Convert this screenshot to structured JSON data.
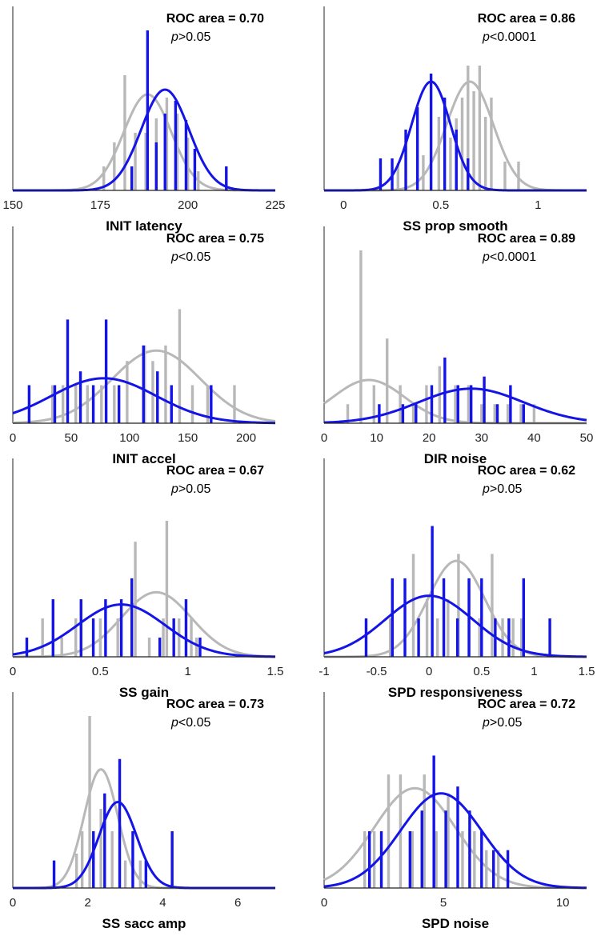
{
  "chart_data": [
    {
      "type": "histogram",
      "xlabel": "INIT latency",
      "roc_label": "ROC area = 0.70",
      "p_sym": "p",
      "p_rest": ">0.05",
      "xlim": [
        150,
        225
      ],
      "xticks": [
        150,
        175,
        200,
        225
      ],
      "tick_labels": [
        "150",
        "175",
        "200",
        "225"
      ],
      "ymax": 1.0,
      "series": [
        {
          "name": "gray",
          "color": "#b8b8b8",
          "bars": [
            [
              176,
              0.15
            ],
            [
              179,
              0.3
            ],
            [
              182,
              0.72
            ],
            [
              185,
              0.36
            ],
            [
              188,
              0.36
            ],
            [
              191,
              0.45
            ],
            [
              194,
              0.58
            ],
            [
              197,
              0.48
            ],
            [
              200,
              0.33
            ],
            [
              203,
              0.12
            ]
          ],
          "curve": {
            "mu": 188.5,
            "sigma": 6.8,
            "peak": 0.6
          }
        },
        {
          "name": "blue",
          "color": "#1414e6",
          "bars": [
            [
              184,
              0.15
            ],
            [
              188.5,
              1.0
            ],
            [
              191,
              0.3
            ],
            [
              193.5,
              0.48
            ],
            [
              196.5,
              0.56
            ],
            [
              199.5,
              0.44
            ],
            [
              202,
              0.26
            ],
            [
              211,
              0.15
            ]
          ],
          "curve": {
            "mu": 193.5,
            "sigma": 6.8,
            "peak": 0.63
          }
        }
      ]
    },
    {
      "type": "histogram",
      "xlabel": "SS prop smooth",
      "roc_label": "ROC area = 0.86",
      "p_sym": "p",
      "p_rest": "<0.0001",
      "xlim": [
        -0.1,
        1.25
      ],
      "xticks": [
        0,
        0.5,
        1
      ],
      "tick_labels": [
        "0",
        "0.5",
        "1"
      ],
      "ymax": 1.0,
      "series": [
        {
          "name": "gray",
          "color": "#b8b8b8",
          "bars": [
            [
              0.28,
              0.17
            ],
            [
              0.41,
              0.22
            ],
            [
              0.49,
              0.46
            ],
            [
              0.55,
              0.33
            ],
            [
              0.58,
              0.45
            ],
            [
              0.61,
              0.58
            ],
            [
              0.64,
              0.78
            ],
            [
              0.67,
              0.62
            ],
            [
              0.7,
              0.78
            ],
            [
              0.73,
              0.46
            ],
            [
              0.76,
              0.58
            ],
            [
              0.83,
              0.18
            ],
            [
              0.9,
              0.18
            ]
          ],
          "curve": {
            "mu": 0.65,
            "sigma": 0.12,
            "peak": 0.68
          }
        },
        {
          "name": "blue",
          "color": "#1414e6",
          "bars": [
            [
              0.19,
              0.2
            ],
            [
              0.25,
              0.2
            ],
            [
              0.32,
              0.38
            ],
            [
              0.38,
              0.52
            ],
            [
              0.45,
              0.73
            ],
            [
              0.52,
              0.58
            ],
            [
              0.58,
              0.38
            ],
            [
              0.64,
              0.2
            ]
          ],
          "curve": {
            "mu": 0.45,
            "sigma": 0.1,
            "peak": 0.68
          }
        }
      ]
    },
    {
      "type": "histogram",
      "xlabel": "INIT accel",
      "roc_label": "ROC area = 0.75",
      "p_sym": "p",
      "p_rest": "<0.05",
      "xlim": [
        0,
        225
      ],
      "xticks": [
        0,
        50,
        100,
        150,
        200
      ],
      "tick_labels": [
        "0",
        "50",
        "100",
        "150",
        "200"
      ],
      "ymax": 1.0,
      "series": [
        {
          "name": "gray",
          "color": "#b8b8b8",
          "bars": [
            [
              34,
              0.22
            ],
            [
              43,
              0.22
            ],
            [
              54,
              0.22
            ],
            [
              64,
              0.22
            ],
            [
              76,
              0.22
            ],
            [
              87,
              0.22
            ],
            [
              98,
              0.36
            ],
            [
              113,
              0.45
            ],
            [
              120,
              0.36
            ],
            [
              131,
              0.45
            ],
            [
              143,
              0.66
            ],
            [
              154,
              0.22
            ],
            [
              167,
              0.22
            ],
            [
              190,
              0.22
            ]
          ],
          "curve": {
            "mu": 123,
            "sigma": 38,
            "peak": 0.42
          }
        },
        {
          "name": "blue",
          "color": "#1414e6",
          "bars": [
            [
              14,
              0.22
            ],
            [
              36,
              0.22
            ],
            [
              47,
              0.6
            ],
            [
              58,
              0.3
            ],
            [
              69,
              0.22
            ],
            [
              80,
              0.6
            ],
            [
              91,
              0.22
            ],
            [
              112,
              0.45
            ],
            [
              124,
              0.3
            ],
            [
              136,
              0.22
            ],
            [
              170,
              0.22
            ]
          ],
          "curve": {
            "mu": 78,
            "sigma": 45,
            "peak": 0.26
          }
        }
      ]
    },
    {
      "type": "histogram",
      "xlabel": "DIR noise",
      "roc_label": "ROC area = 0.89",
      "p_sym": "p",
      "p_rest": "<0.0001",
      "xlim": [
        0,
        50
      ],
      "xticks": [
        0,
        10,
        20,
        30,
        40,
        50
      ],
      "tick_labels": [
        "0",
        "10",
        "20",
        "30",
        "40",
        "50"
      ],
      "ymax": 1.0,
      "series": [
        {
          "name": "gray",
          "color": "#b8b8b8",
          "bars": [
            [
              4.5,
              0.11
            ],
            [
              7,
              1.0
            ],
            [
              9.5,
              0.22
            ],
            [
              12,
              0.49
            ],
            [
              14.5,
              0.22
            ],
            [
              17,
              0.11
            ],
            [
              19.5,
              0.22
            ],
            [
              22,
              0.33
            ],
            [
              25,
              0.22
            ],
            [
              27.5,
              0.22
            ],
            [
              30,
              0.11
            ],
            [
              32.5,
              0.11
            ],
            [
              35,
              0.11
            ],
            [
              37.5,
              0.11
            ],
            [
              40,
              0.11
            ]
          ],
          "curve": {
            "mu": 8.5,
            "sigma": 6.8,
            "peak": 0.25
          }
        },
        {
          "name": "blue",
          "color": "#1414e6",
          "bars": [
            [
              10.5,
              0.11
            ],
            [
              15,
              0.11
            ],
            [
              17.5,
              0.11
            ],
            [
              20.5,
              0.22
            ],
            [
              23,
              0.38
            ],
            [
              25.5,
              0.22
            ],
            [
              28,
              0.22
            ],
            [
              30.5,
              0.27
            ],
            [
              33,
              0.11
            ],
            [
              35.5,
              0.22
            ],
            [
              38,
              0.11
            ]
          ],
          "curve": {
            "mu": 28,
            "sigma": 10,
            "peak": 0.2
          }
        }
      ]
    },
    {
      "type": "histogram",
      "xlabel": "SS gain",
      "roc_label": "ROC area = 0.67",
      "p_sym": "p",
      "p_rest": ">0.05",
      "xlim": [
        0,
        1.5
      ],
      "xticks": [
        0,
        0.5,
        1,
        1.5
      ],
      "tick_labels": [
        "0",
        "0.5",
        "1",
        "1.5"
      ],
      "ymax": 1.0,
      "series": [
        {
          "name": "gray",
          "color": "#b8b8b8",
          "bars": [
            [
              0.17,
              0.22
            ],
            [
              0.28,
              0.11
            ],
            [
              0.36,
              0.22
            ],
            [
              0.5,
              0.22
            ],
            [
              0.6,
              0.22
            ],
            [
              0.7,
              0.66
            ],
            [
              0.78,
              0.11
            ],
            [
              0.86,
              0.22
            ],
            [
              0.88,
              0.78
            ],
            [
              0.95,
              0.22
            ],
            [
              1.02,
              0.22
            ],
            [
              1.05,
              0.11
            ]
          ],
          "curve": {
            "mu": 0.82,
            "sigma": 0.2,
            "peak": 0.37
          }
        },
        {
          "name": "blue",
          "color": "#1414e6",
          "bars": [
            [
              0.08,
              0.11
            ],
            [
              0.23,
              0.33
            ],
            [
              0.39,
              0.33
            ],
            [
              0.46,
              0.22
            ],
            [
              0.53,
              0.33
            ],
            [
              0.62,
              0.33
            ],
            [
              0.68,
              0.45
            ],
            [
              0.84,
              0.11
            ],
            [
              0.92,
              0.22
            ],
            [
              0.99,
              0.33
            ],
            [
              1.07,
              0.11
            ]
          ],
          "curve": {
            "mu": 0.62,
            "sigma": 0.25,
            "peak": 0.3
          }
        }
      ]
    },
    {
      "type": "histogram",
      "xlabel": "SPD responsiveness",
      "roc_label": "ROC area = 0.62",
      "p_sym": "p",
      "p_rest": ">0.05",
      "xlim": [
        -1,
        1.5
      ],
      "xticks": [
        -1,
        -0.5,
        0,
        0.5,
        1,
        1.5
      ],
      "tick_labels": [
        "-1",
        "-0.5",
        "0",
        "0.5",
        "1",
        "1.5"
      ],
      "ymax": 1.0,
      "series": [
        {
          "name": "gray",
          "color": "#b8b8b8",
          "bars": [
            [
              -0.37,
              0.22
            ],
            [
              -0.15,
              0.59
            ],
            [
              -0.02,
              0.33
            ],
            [
              0.08,
              0.22
            ],
            [
              0.18,
              0.33
            ],
            [
              0.28,
              0.59
            ],
            [
              0.38,
              0.45
            ],
            [
              0.48,
              0.22
            ],
            [
              0.6,
              0.59
            ],
            [
              0.7,
              0.22
            ],
            [
              0.8,
              0.22
            ],
            [
              0.88,
              0.22
            ]
          ],
          "curve": {
            "mu": 0.26,
            "sigma": 0.27,
            "peak": 0.55
          }
        },
        {
          "name": "blue",
          "color": "#1414e6",
          "bars": [
            [
              -0.6,
              0.22
            ],
            [
              -0.35,
              0.45
            ],
            [
              -0.23,
              0.45
            ],
            [
              -0.1,
              0.22
            ],
            [
              0.03,
              0.75
            ],
            [
              0.14,
              0.45
            ],
            [
              0.27,
              0.22
            ],
            [
              0.38,
              0.45
            ],
            [
              0.5,
              0.45
            ],
            [
              0.63,
              0.22
            ],
            [
              0.76,
              0.22
            ],
            [
              0.9,
              0.45
            ],
            [
              1.15,
              0.22
            ]
          ],
          "curve": {
            "mu": 0.0,
            "sigma": 0.42,
            "peak": 0.35
          }
        }
      ]
    },
    {
      "type": "histogram",
      "xlabel": "SS sacc amp",
      "roc_label": "ROC area = 0.73",
      "p_sym": "p",
      "p_rest": "<0.05",
      "xlim": [
        0,
        7
      ],
      "xticks": [
        0,
        2,
        4,
        6
      ],
      "tick_labels": [
        "0",
        "2",
        "4",
        "6"
      ],
      "ymax": 1.0,
      "series": [
        {
          "name": "gray",
          "color": "#b8b8b8",
          "bars": [
            [
              1.7,
              0.2
            ],
            [
              1.85,
              0.33
            ],
            [
              2.05,
              1.0
            ],
            [
              2.35,
              0.46
            ],
            [
              2.65,
              0.33
            ],
            [
              3.0,
              0.16
            ],
            [
              3.4,
              0.16
            ]
          ],
          "curve": {
            "mu": 2.35,
            "sigma": 0.45,
            "peak": 0.69
          }
        },
        {
          "name": "blue",
          "color": "#1414e6",
          "bars": [
            [
              1.1,
              0.16
            ],
            [
              2.15,
              0.33
            ],
            [
              2.45,
              0.55
            ],
            [
              2.85,
              0.75
            ],
            [
              3.2,
              0.33
            ],
            [
              3.55,
              0.16
            ],
            [
              4.25,
              0.33
            ]
          ],
          "curve": {
            "mu": 2.8,
            "sigma": 0.5,
            "peak": 0.5
          }
        }
      ]
    },
    {
      "type": "histogram",
      "xlabel": "SPD noise",
      "roc_label": "ROC area = 0.72",
      "p_sym": "p",
      "p_rest": ">0.05",
      "xlim": [
        0,
        11
      ],
      "xticks": [
        0,
        5,
        10
      ],
      "tick_labels": [
        "0",
        "5",
        "10"
      ],
      "ymax": 1.0,
      "series": [
        {
          "name": "gray",
          "color": "#b8b8b8",
          "bars": [
            [
              1.7,
              0.33
            ],
            [
              2.1,
              0.33
            ],
            [
              2.7,
              0.66
            ],
            [
              3.2,
              0.66
            ],
            [
              3.7,
              0.33
            ],
            [
              4.2,
              0.66
            ],
            [
              4.7,
              0.33
            ],
            [
              5.2,
              0.55
            ],
            [
              5.8,
              0.33
            ],
            [
              6.3,
              0.33
            ],
            [
              6.8,
              0.22
            ],
            [
              7.3,
              0.22
            ]
          ],
          "curve": {
            "mu": 3.8,
            "sigma": 1.7,
            "peak": 0.58
          }
        },
        {
          "name": "blue",
          "color": "#1414e6",
          "bars": [
            [
              1.9,
              0.33
            ],
            [
              2.4,
              0.33
            ],
            [
              3.6,
              0.33
            ],
            [
              4.1,
              0.45
            ],
            [
              4.6,
              0.77
            ],
            [
              5.1,
              0.45
            ],
            [
              5.6,
              0.59
            ],
            [
              6.1,
              0.45
            ],
            [
              6.6,
              0.33
            ],
            [
              7.1,
              0.22
            ],
            [
              7.7,
              0.22
            ]
          ],
          "curve": {
            "mu": 4.9,
            "sigma": 1.7,
            "peak": 0.55
          }
        }
      ]
    }
  ]
}
